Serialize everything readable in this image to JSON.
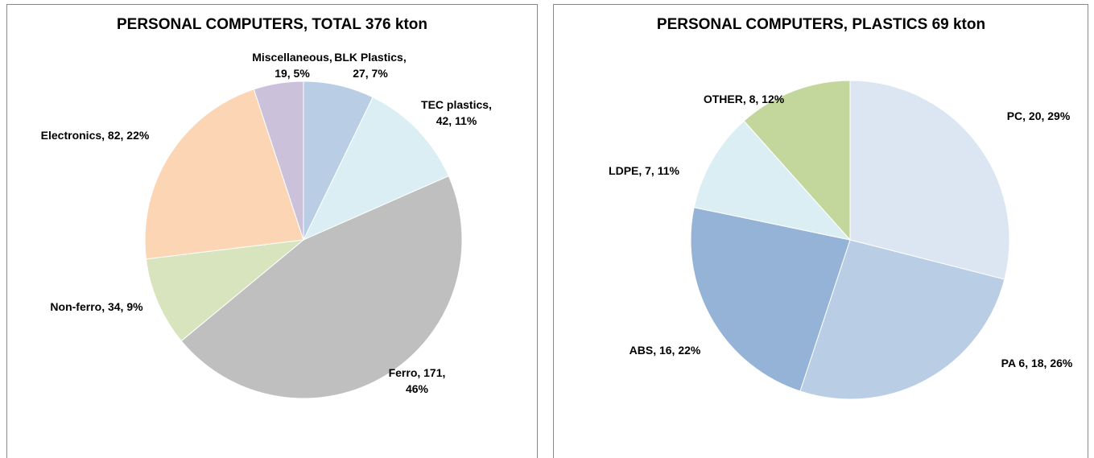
{
  "chart_data": [
    {
      "type": "pie",
      "title": "PERSONAL COMPUTERS, TOTAL 376 kton",
      "values": [
        27,
        42,
        171,
        34,
        82,
        19
      ],
      "value_labels": [
        "BLK Plastics,\n27, 7%",
        "TEC plastics,\n42, 11%",
        "Ferro, 171,\n46%",
        "Non-ferro, 34, 9%",
        "Electronics, 82, 22%",
        "Miscellaneous,\n19, 5%"
      ],
      "colors": [
        "#b9cde5",
        "#dbeef4",
        "#bfbfbf",
        "#d7e4bd",
        "#fcd5b5",
        "#ccc1da"
      ]
    },
    {
      "type": "pie",
      "title": "PERSONAL COMPUTERS, PLASTICS 69 kton",
      "values": [
        20,
        18,
        16,
        7,
        8
      ],
      "value_labels": [
        "PC, 20, 29%",
        "PA 6, 18, 26%",
        "ABS, 16, 22%",
        "LDPE, 7, 11%",
        "OTHER, 8, 12%"
      ],
      "colors": [
        "#dce6f2",
        "#b9cde5",
        "#95b3d7",
        "#dbeef4",
        "#c3d69b"
      ]
    }
  ]
}
